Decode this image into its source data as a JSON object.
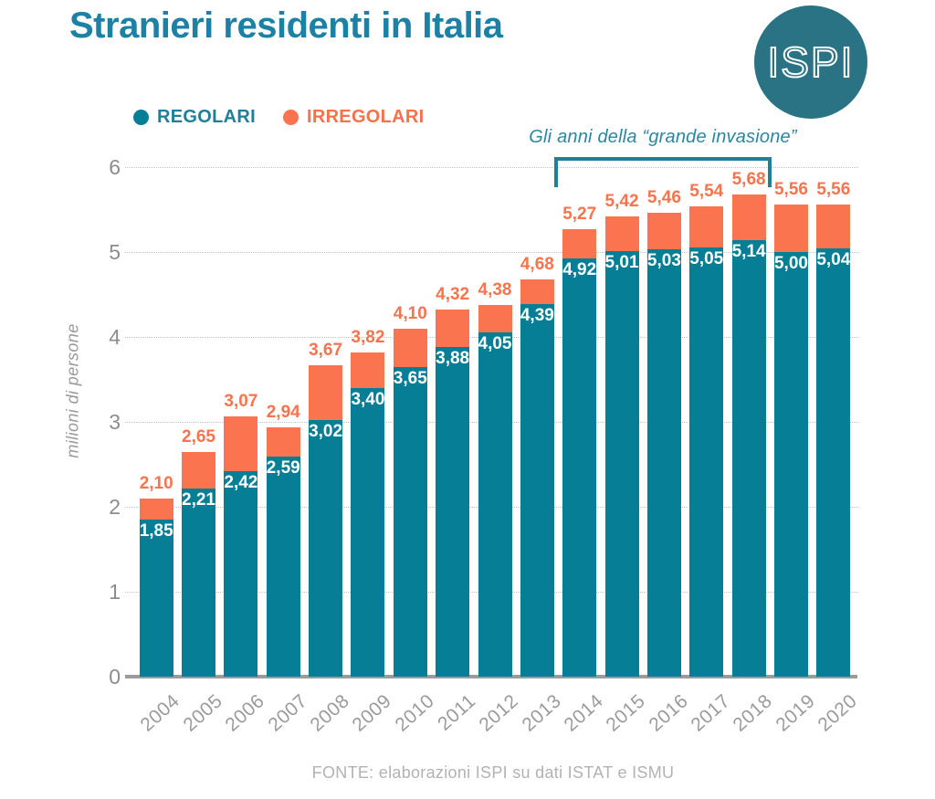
{
  "header": {
    "title": "Stranieri residenti in Italia",
    "logo_text": "ISPI"
  },
  "legend": [
    {
      "label": "REGOLARI",
      "color": "#067e95",
      "text_color": "#1f7f99"
    },
    {
      "label": "IRREGOLARI",
      "color": "#fb7450",
      "text_color": "#f8714b"
    }
  ],
  "chart_data": {
    "type": "bar",
    "stacked": true,
    "title": "Stranieri residenti in Italia",
    "xlabel": "",
    "ylabel": "milioni di persone",
    "ylim": [
      0,
      6
    ],
    "yticks": [
      0,
      1,
      2,
      3,
      4,
      5,
      6
    ],
    "grid": "horizontal-dotted",
    "legend_position": "top-left",
    "categories": [
      "2004",
      "2005",
      "2006",
      "2007",
      "2008",
      "2009",
      "2010",
      "2011",
      "2012",
      "2013",
      "2014",
      "2015",
      "2016",
      "2017",
      "2018",
      "2019",
      "2020"
    ],
    "series": [
      {
        "name": "REGOLARI",
        "color": "#067e95",
        "values": [
          1.85,
          2.21,
          2.42,
          2.59,
          3.02,
          3.4,
          3.65,
          3.88,
          4.05,
          4.39,
          4.92,
          5.01,
          5.03,
          5.05,
          5.14,
          5.0,
          5.04
        ]
      },
      {
        "name": "IRREGOLARI",
        "color": "#fb7450",
        "values": [
          0.25,
          0.44,
          0.65,
          0.35,
          0.65,
          0.42,
          0.45,
          0.44,
          0.33,
          0.29,
          0.35,
          0.41,
          0.43,
          0.49,
          0.54,
          0.56,
          0.52
        ]
      }
    ],
    "totals": [
      2.1,
      2.65,
      3.07,
      2.94,
      3.67,
      3.82,
      4.1,
      4.32,
      4.38,
      4.68,
      5.27,
      5.42,
      5.46,
      5.54,
      5.68,
      5.56,
      5.56
    ],
    "regolari_labels": [
      "1,85",
      "2,21",
      "2,42",
      "2,59",
      "3,02",
      "3,40",
      "3,65",
      "3,88",
      "4,05",
      "4,39",
      "4,92",
      "5,01",
      "5,03",
      "5,05",
      "5,14",
      "5,00",
      "5,04"
    ],
    "total_labels": [
      "2,10",
      "2,65",
      "3,07",
      "2,94",
      "3,67",
      "3,82",
      "4,10",
      "4,32",
      "4,38",
      "4,68",
      "5,27",
      "5,42",
      "5,46",
      "5,54",
      "5,68",
      "5,56",
      "5,56"
    ],
    "annotation": {
      "text": "Gli anni della “grande invasione”",
      "span_years": [
        "2014",
        "2018"
      ]
    }
  },
  "footer": {
    "source": "FONTE: elaborazioni ISPI su dati ISTAT e ISMU"
  }
}
